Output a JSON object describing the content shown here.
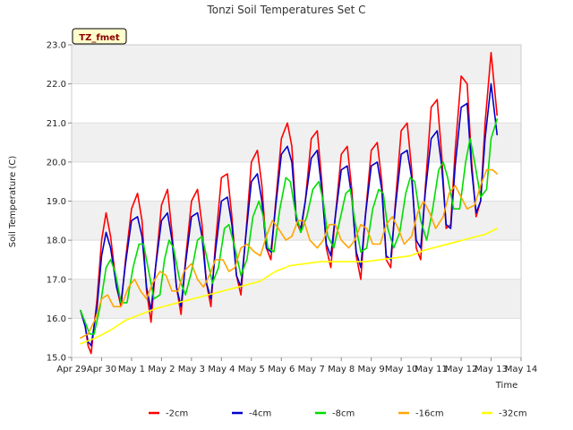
{
  "chart_data": {
    "type": "line",
    "title": "Tonzi Soil Temperatures Set C",
    "xlabel": "Time",
    "ylabel": "Soil Temperature (C)",
    "site_tag": "TZ_fmet",
    "xlim": [
      0,
      15
    ],
    "ylim": [
      15.0,
      23.0
    ],
    "x_ticks": [
      {
        "x": 0,
        "label": "Apr 29"
      },
      {
        "x": 1,
        "label": "Apr 30"
      },
      {
        "x": 2,
        "label": "May 1"
      },
      {
        "x": 3,
        "label": "May 2"
      },
      {
        "x": 4,
        "label": "May 3"
      },
      {
        "x": 5,
        "label": "May 4"
      },
      {
        "x": 6,
        "label": "May 5"
      },
      {
        "x": 7,
        "label": "May 6"
      },
      {
        "x": 8,
        "label": "May 7"
      },
      {
        "x": 9,
        "label": "May 8"
      },
      {
        "x": 10,
        "label": "May 9"
      },
      {
        "x": 11,
        "label": "May 10"
      },
      {
        "x": 12,
        "label": "May 11"
      },
      {
        "x": 13,
        "label": "May 12"
      },
      {
        "x": 14,
        "label": "May 13"
      },
      {
        "x": 15,
        "label": "May 14"
      }
    ],
    "y_ticks": [
      "15.0",
      "16.0",
      "17.0",
      "18.0",
      "19.0",
      "20.0",
      "21.0",
      "22.0",
      "23.0"
    ],
    "grid": true,
    "legend_position": "bottom",
    "series": [
      {
        "name": "-2cm",
        "color": "#ff0000",
        "x": [
          0.3,
          0.45,
          0.55,
          0.65,
          0.85,
          1.0,
          1.15,
          1.3,
          1.5,
          1.65,
          1.8,
          2.0,
          2.2,
          2.35,
          2.5,
          2.65,
          2.8,
          3.0,
          3.2,
          3.35,
          3.5,
          3.65,
          3.8,
          4.0,
          4.2,
          4.35,
          4.5,
          4.65,
          4.8,
          5.0,
          5.2,
          5.35,
          5.5,
          5.65,
          5.8,
          6.0,
          6.2,
          6.35,
          6.5,
          6.65,
          6.8,
          7.0,
          7.2,
          7.35,
          7.5,
          7.65,
          7.8,
          8.0,
          8.2,
          8.35,
          8.5,
          8.65,
          8.8,
          9.0,
          9.2,
          9.35,
          9.5,
          9.65,
          9.8,
          10.0,
          10.2,
          10.35,
          10.5,
          10.65,
          10.8,
          11.0,
          11.2,
          11.35,
          11.5,
          11.65,
          11.8,
          12.0,
          12.2,
          12.35,
          12.5,
          12.65,
          12.8,
          13.0,
          13.2,
          13.35,
          13.5,
          13.65,
          13.8,
          14.0,
          14.2
        ],
        "y": [
          16.2,
          15.8,
          15.3,
          15.1,
          16.5,
          18.0,
          18.7,
          18.1,
          16.8,
          16.3,
          17.5,
          18.8,
          19.2,
          18.5,
          16.7,
          15.9,
          17.3,
          18.9,
          19.3,
          18.2,
          16.8,
          16.1,
          17.5,
          19.0,
          19.3,
          18.4,
          16.9,
          16.3,
          17.9,
          19.6,
          19.7,
          18.6,
          17.1,
          16.6,
          18.0,
          20.0,
          20.3,
          19.4,
          17.8,
          17.5,
          18.9,
          20.6,
          21.0,
          20.4,
          18.5,
          18.2,
          19.0,
          20.6,
          20.8,
          19.5,
          17.8,
          17.3,
          18.6,
          20.2,
          20.4,
          19.3,
          17.6,
          17.0,
          18.6,
          20.3,
          20.5,
          19.5,
          17.5,
          17.3,
          18.9,
          20.8,
          21.0,
          19.8,
          17.8,
          17.5,
          19.3,
          21.4,
          21.6,
          20.2,
          18.3,
          18.4,
          20.3,
          22.2,
          22.0,
          20.0,
          18.6,
          19.0,
          21.0,
          22.8,
          21.2
        ]
      },
      {
        "name": "-4cm",
        "color": "#0000cd",
        "x": [
          0.3,
          0.45,
          0.55,
          0.65,
          0.85,
          1.0,
          1.15,
          1.3,
          1.5,
          1.65,
          1.8,
          2.0,
          2.2,
          2.35,
          2.5,
          2.65,
          2.8,
          3.0,
          3.2,
          3.35,
          3.5,
          3.65,
          3.8,
          4.0,
          4.2,
          4.35,
          4.5,
          4.65,
          4.8,
          5.0,
          5.2,
          5.35,
          5.5,
          5.65,
          5.8,
          6.0,
          6.2,
          6.35,
          6.5,
          6.65,
          6.8,
          7.0,
          7.2,
          7.35,
          7.5,
          7.65,
          7.8,
          8.0,
          8.2,
          8.35,
          8.5,
          8.65,
          8.8,
          9.0,
          9.2,
          9.35,
          9.5,
          9.65,
          9.8,
          10.0,
          10.2,
          10.35,
          10.5,
          10.65,
          10.8,
          11.0,
          11.2,
          11.35,
          11.5,
          11.65,
          11.8,
          12.0,
          12.2,
          12.35,
          12.5,
          12.65,
          12.8,
          13.0,
          13.2,
          13.35,
          13.5,
          13.65,
          13.8,
          14.0,
          14.2
        ],
        "y": [
          16.2,
          15.8,
          15.4,
          15.3,
          16.3,
          17.6,
          18.2,
          17.8,
          16.8,
          16.4,
          17.4,
          18.5,
          18.6,
          18.1,
          16.8,
          16.2,
          17.3,
          18.5,
          18.7,
          18.0,
          16.8,
          16.3,
          17.4,
          18.6,
          18.7,
          18.1,
          16.9,
          16.5,
          17.7,
          19.0,
          19.1,
          18.4,
          17.1,
          16.8,
          18.0,
          19.5,
          19.7,
          19.0,
          17.8,
          17.7,
          18.8,
          20.2,
          20.4,
          20.0,
          18.5,
          18.3,
          19.0,
          20.1,
          20.3,
          19.3,
          17.9,
          17.6,
          18.6,
          19.8,
          19.9,
          19.1,
          17.7,
          17.3,
          18.6,
          19.9,
          20.0,
          19.3,
          17.6,
          17.5,
          18.8,
          20.2,
          20.3,
          19.6,
          18.0,
          17.8,
          19.2,
          20.6,
          20.8,
          19.9,
          18.4,
          18.3,
          19.9,
          21.4,
          21.5,
          19.8,
          18.7,
          19.0,
          20.6,
          22.0,
          20.7
        ]
      },
      {
        "name": "-8cm",
        "color": "#00dd00",
        "x": [
          0.3,
          0.45,
          0.6,
          0.75,
          0.95,
          1.15,
          1.3,
          1.45,
          1.65,
          1.85,
          2.05,
          2.25,
          2.4,
          2.55,
          2.75,
          2.95,
          3.1,
          3.25,
          3.4,
          3.6,
          3.8,
          4.0,
          4.2,
          4.35,
          4.5,
          4.7,
          4.9,
          5.1,
          5.25,
          5.45,
          5.65,
          5.85,
          6.05,
          6.25,
          6.4,
          6.55,
          6.75,
          6.95,
          7.15,
          7.3,
          7.45,
          7.65,
          7.85,
          8.05,
          8.25,
          8.4,
          8.55,
          8.75,
          8.95,
          9.15,
          9.3,
          9.45,
          9.65,
          9.85,
          10.05,
          10.25,
          10.4,
          10.55,
          10.75,
          10.95,
          11.15,
          11.3,
          11.45,
          11.65,
          11.85,
          12.05,
          12.25,
          12.4,
          12.55,
          12.75,
          12.95,
          13.15,
          13.3,
          13.45,
          13.65,
          13.85,
          14.0,
          14.2
        ],
        "y": [
          16.2,
          15.9,
          15.6,
          15.6,
          16.3,
          17.3,
          17.5,
          17.2,
          16.4,
          16.4,
          17.3,
          17.9,
          17.9,
          17.3,
          16.5,
          16.6,
          17.5,
          18.0,
          17.8,
          17.0,
          16.6,
          17.2,
          18.0,
          18.1,
          17.6,
          16.9,
          17.3,
          18.3,
          18.4,
          17.8,
          17.1,
          17.5,
          18.6,
          19.0,
          18.6,
          17.8,
          17.7,
          18.8,
          19.6,
          19.5,
          18.8,
          18.2,
          18.6,
          19.3,
          19.5,
          19.0,
          18.1,
          17.8,
          18.5,
          19.2,
          19.3,
          18.5,
          17.7,
          17.8,
          18.8,
          19.3,
          19.2,
          18.3,
          17.8,
          18.2,
          19.2,
          19.6,
          19.5,
          18.5,
          18.0,
          18.8,
          19.8,
          20.0,
          19.6,
          18.8,
          18.8,
          20.0,
          20.6,
          20.0,
          19.1,
          19.3,
          20.6,
          21.1
        ]
      },
      {
        "name": "-16cm",
        "color": "#ffa500",
        "x": [
          0.3,
          0.55,
          0.8,
          1.0,
          1.2,
          1.4,
          1.65,
          1.9,
          2.1,
          2.3,
          2.5,
          2.7,
          2.95,
          3.15,
          3.35,
          3.55,
          3.75,
          4.0,
          4.2,
          4.4,
          4.6,
          4.8,
          5.05,
          5.25,
          5.45,
          5.65,
          5.85,
          6.1,
          6.3,
          6.5,
          6.7,
          6.9,
          7.15,
          7.35,
          7.55,
          7.75,
          7.95,
          8.2,
          8.4,
          8.6,
          8.8,
          9.0,
          9.25,
          9.45,
          9.65,
          9.85,
          10.05,
          10.3,
          10.5,
          10.7,
          10.9,
          11.1,
          11.35,
          11.55,
          11.75,
          11.95,
          12.15,
          12.4,
          12.6,
          12.8,
          13.0,
          13.2,
          13.45,
          13.65,
          13.85,
          14.05,
          14.2
        ],
        "y": [
          15.5,
          15.6,
          16.0,
          16.5,
          16.6,
          16.3,
          16.3,
          16.8,
          17.0,
          16.7,
          16.5,
          16.9,
          17.2,
          17.1,
          16.7,
          16.7,
          17.2,
          17.4,
          17.0,
          16.8,
          17.1,
          17.5,
          17.5,
          17.2,
          17.3,
          17.8,
          17.9,
          17.7,
          17.6,
          18.1,
          18.5,
          18.3,
          18.0,
          18.1,
          18.5,
          18.5,
          18.0,
          17.8,
          18.0,
          18.4,
          18.4,
          18.0,
          17.8,
          18.0,
          18.4,
          18.3,
          17.9,
          17.9,
          18.4,
          18.6,
          18.3,
          17.9,
          18.1,
          18.7,
          19.0,
          18.7,
          18.3,
          18.6,
          19.2,
          19.4,
          19.1,
          18.8,
          18.9,
          19.4,
          19.8,
          19.8,
          19.7
        ]
      },
      {
        "name": "-32cm",
        "color": "#ffff00",
        "x": [
          0.3,
          0.8,
          1.3,
          1.8,
          2.3,
          2.8,
          3.3,
          3.8,
          4.3,
          4.8,
          5.3,
          5.8,
          6.3,
          6.8,
          7.3,
          7.8,
          8.3,
          8.8,
          9.3,
          9.8,
          10.3,
          10.8,
          11.3,
          11.8,
          12.3,
          12.8,
          13.3,
          13.8,
          14.2
        ],
        "y": [
          15.35,
          15.5,
          15.7,
          15.95,
          16.1,
          16.25,
          16.35,
          16.45,
          16.55,
          16.65,
          16.75,
          16.85,
          16.95,
          17.2,
          17.35,
          17.4,
          17.45,
          17.45,
          17.45,
          17.45,
          17.5,
          17.55,
          17.6,
          17.75,
          17.85,
          17.95,
          18.05,
          18.15,
          18.3
        ]
      }
    ]
  }
}
